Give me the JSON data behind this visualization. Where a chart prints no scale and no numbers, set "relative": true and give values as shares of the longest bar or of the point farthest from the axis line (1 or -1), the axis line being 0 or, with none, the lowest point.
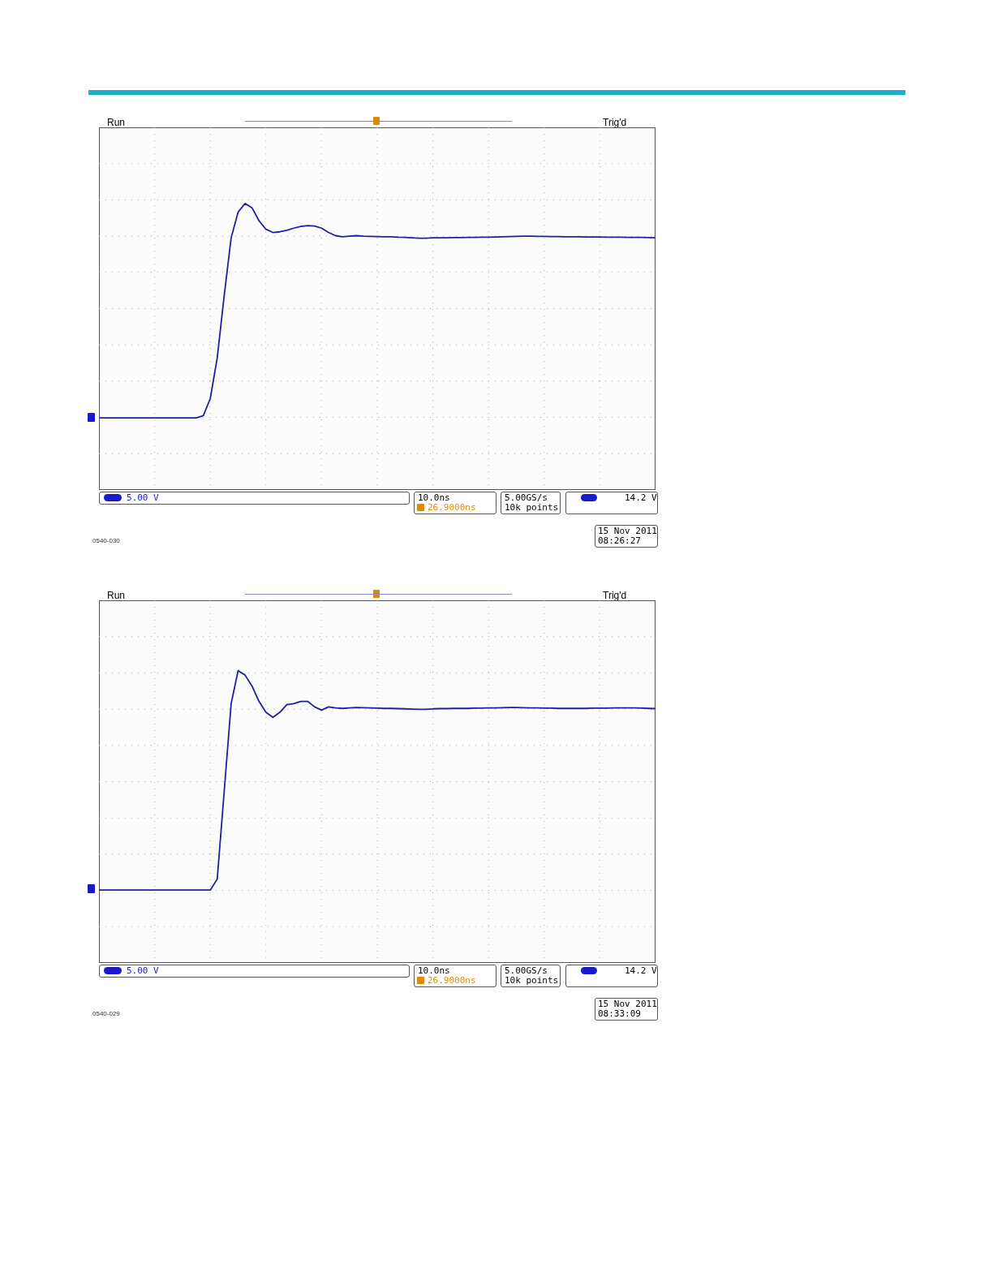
{
  "chart_data": [
    {
      "type": "line",
      "relative": true,
      "categories": [
        null,
        null,
        null,
        null,
        null,
        null,
        null,
        null,
        null,
        null,
        null,
        null,
        null,
        null,
        null,
        null,
        null,
        null,
        null,
        null,
        null,
        null,
        null,
        null,
        null,
        null,
        null,
        null,
        null,
        null,
        null,
        null,
        null,
        null,
        null,
        null,
        null,
        null,
        null,
        null,
        null,
        null,
        null,
        null,
        null,
        null,
        null,
        null,
        null,
        null,
        null,
        null,
        null,
        null,
        null,
        null,
        null,
        null,
        null,
        null,
        null,
        null,
        null,
        null,
        null,
        null,
        null,
        null,
        null,
        null,
        null,
        null,
        null,
        null,
        null,
        null,
        null,
        null,
        null,
        null,
        null
      ],
      "series": [
        {
          "color": "#1f1fa0",
          "values": [
            0,
            0,
            0,
            0,
            0,
            0,
            0,
            0,
            0,
            0,
            0,
            0,
            0,
            0,
            0,
            0.01,
            0.09,
            0.28,
            0.57,
            0.84,
            0.96,
            1,
            0.98,
            0.92,
            0.88,
            0.865,
            0.868,
            0.875,
            0.885,
            0.893,
            0.897,
            0.895,
            0.885,
            0.865,
            0.85,
            0.845,
            0.848,
            0.85,
            0.848,
            0.847,
            0.846,
            0.845,
            0.845,
            0.843,
            0.842,
            0.84,
            0.838,
            0.838,
            0.84,
            0.84,
            0.84,
            0.841,
            0.841,
            0.842,
            0.842,
            0.843,
            0.843,
            0.844,
            0.845,
            0.846,
            0.847,
            0.848,
            0.848,
            0.847,
            0.847,
            0.846,
            0.846,
            0.845,
            0.845,
            0.845,
            0.844,
            0.844,
            0.844,
            0.843,
            0.843,
            0.843,
            0.842,
            0.842,
            0.842,
            0.841,
            0.84
          ]
        }
      ],
      "grid": true,
      "tick_labels": false,
      "annotations": [
        "Run",
        "Trig'd",
        "5.00 V",
        "10.0ns",
        "26.9000ns",
        "5.00GS/s",
        "10k points",
        "14.2 V",
        "15 Nov 2011",
        "08:26:27",
        "0540-030"
      ]
    },
    {
      "type": "line",
      "relative": true,
      "categories": [
        null,
        null,
        null,
        null,
        null,
        null,
        null,
        null,
        null,
        null,
        null,
        null,
        null,
        null,
        null,
        null,
        null,
        null,
        null,
        null,
        null,
        null,
        null,
        null,
        null,
        null,
        null,
        null,
        null,
        null,
        null,
        null,
        null,
        null,
        null,
        null,
        null,
        null,
        null,
        null,
        null,
        null,
        null,
        null,
        null,
        null,
        null,
        null,
        null,
        null,
        null,
        null,
        null,
        null,
        null,
        null,
        null,
        null,
        null,
        null,
        null,
        null,
        null,
        null,
        null,
        null,
        null,
        null,
        null,
        null,
        null,
        null,
        null,
        null,
        null,
        null,
        null,
        null,
        null,
        null,
        null
      ],
      "series": [
        {
          "color": "#1f1fa0",
          "values": [
            0,
            0,
            0,
            0,
            0,
            0,
            0,
            0,
            0,
            0,
            0,
            0,
            0,
            0,
            0,
            0,
            0,
            0.05,
            0.45,
            0.85,
            1,
            0.98,
            0.93,
            0.86,
            0.81,
            0.787,
            0.81,
            0.845,
            0.85,
            0.86,
            0.86,
            0.835,
            0.82,
            0.835,
            0.83,
            0.828,
            0.83,
            0.832,
            0.831,
            0.83,
            0.829,
            0.828,
            0.828,
            0.827,
            0.826,
            0.825,
            0.824,
            0.824,
            0.826,
            0.827,
            0.827,
            0.828,
            0.828,
            0.828,
            0.829,
            0.829,
            0.83,
            0.83,
            0.831,
            0.832,
            0.832,
            0.831,
            0.83,
            0.83,
            0.829,
            0.829,
            0.828,
            0.828,
            0.828,
            0.828,
            0.828,
            0.829,
            0.829,
            0.829,
            0.83,
            0.83,
            0.83,
            0.83,
            0.829,
            0.828,
            0.827
          ]
        }
      ],
      "grid": true,
      "tick_labels": false,
      "annotations": [
        "Run",
        "Trig'd",
        "5.00 V",
        "10.0ns",
        "26.9000ns",
        "5.00GS/s",
        "10k points",
        "14.2 V",
        "15 Nov 2011",
        "08:33:09",
        "0540-029"
      ]
    }
  ]
}
